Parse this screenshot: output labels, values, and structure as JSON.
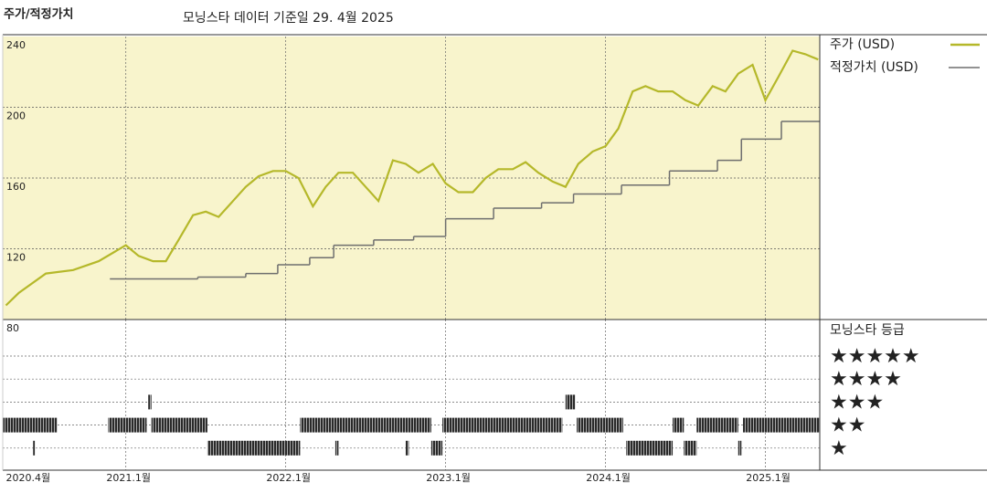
{
  "chart_data": [
    {
      "type": "line",
      "title": "주가/적정가치",
      "subtitle": "모닝스타 데이터 기준일 29. 4월 2025",
      "xlim": [
        2020.23,
        2025.34
      ],
      "xticks": [
        {
          "value": 2020.25,
          "label": "2020.4월"
        },
        {
          "value": 2021.0,
          "label": "2021.1월"
        },
        {
          "value": 2022.0,
          "label": "2022.1월"
        },
        {
          "value": 2023.0,
          "label": "2023.1월"
        },
        {
          "value": 2024.0,
          "label": "2024.1월"
        },
        {
          "value": 2025.0,
          "label": "2025.1월"
        }
      ],
      "ylim": [
        80,
        240
      ],
      "yticks": [
        80,
        120,
        160,
        200,
        240
      ],
      "grid": true,
      "background": "#f8f4cc",
      "series": [
        {
          "name": "주가 (USD)",
          "color": "#b5b82a",
          "style": "line",
          "x": [
            2020.25,
            2020.33,
            2020.5,
            2020.67,
            2020.83,
            2021.0,
            2021.08,
            2021.17,
            2021.25,
            2021.33,
            2021.42,
            2021.5,
            2021.58,
            2021.67,
            2021.75,
            2021.83,
            2021.92,
            2022.0,
            2022.08,
            2022.17,
            2022.25,
            2022.33,
            2022.42,
            2022.5,
            2022.58,
            2022.67,
            2022.75,
            2022.83,
            2022.92,
            2023.0,
            2023.08,
            2023.17,
            2023.25,
            2023.33,
            2023.42,
            2023.5,
            2023.58,
            2023.67,
            2023.75,
            2023.83,
            2023.92,
            2024.0,
            2024.08,
            2024.17,
            2024.25,
            2024.33,
            2024.42,
            2024.5,
            2024.58,
            2024.67,
            2024.75,
            2024.83,
            2024.92,
            2025.0,
            2025.08,
            2025.17,
            2025.25,
            2025.33
          ],
          "values": [
            88,
            95,
            106,
            108,
            113,
            122,
            116,
            113,
            113,
            125,
            139,
            141,
            138,
            147,
            155,
            161,
            164,
            164,
            160,
            144,
            155,
            163,
            163,
            155,
            147,
            170,
            168,
            163,
            168,
            157,
            152,
            152,
            160,
            165,
            165,
            169,
            163,
            158,
            155,
            168,
            175,
            178,
            188,
            209,
            212,
            209,
            209,
            204,
            201,
            212,
            209,
            219,
            224,
            204,
            217,
            232,
            230,
            227
          ]
        },
        {
          "name": "적정가치 (USD)",
          "color": "#6e6e6e",
          "style": "step",
          "x": [
            2020.9,
            2021.45,
            2021.75,
            2021.95,
            2022.15,
            2022.3,
            2022.55,
            2022.8,
            2023.0,
            2023.3,
            2023.6,
            2023.8,
            2024.1,
            2024.4,
            2024.7,
            2024.85,
            2025.1
          ],
          "values": [
            103,
            104,
            106,
            111,
            115,
            122,
            125,
            127,
            137,
            143,
            146,
            151,
            156,
            164,
            170,
            182,
            192
          ]
        }
      ]
    },
    {
      "type": "rating",
      "title": "모닝스타 등급",
      "levels": [
        {
          "value": 5,
          "label": "★★★★★"
        },
        {
          "value": 4,
          "label": "★★★★"
        },
        {
          "value": 3,
          "label": "★★★"
        },
        {
          "value": 2,
          "label": "★★"
        },
        {
          "value": 1,
          "label": "★"
        }
      ],
      "color": "#2a2a2a",
      "periods": [
        {
          "x": [
            2020.23,
            2020.57
          ],
          "value": 2
        },
        {
          "x": [
            2020.42,
            2020.43
          ],
          "value": 1
        },
        {
          "x": [
            2020.89,
            2021.13
          ],
          "value": 2
        },
        {
          "x": [
            2021.14,
            2021.16
          ],
          "value": 3
        },
        {
          "x": [
            2021.16,
            2021.51
          ],
          "value": 2
        },
        {
          "x": [
            2021.51,
            2022.09
          ],
          "value": 1
        },
        {
          "x": [
            2022.09,
            2022.91
          ],
          "value": 2
        },
        {
          "x": [
            2022.31,
            2022.33
          ],
          "value": 1
        },
        {
          "x": [
            2022.75,
            2022.77
          ],
          "value": 1
        },
        {
          "x": [
            2022.91,
            2022.98
          ],
          "value": 1
        },
        {
          "x": [
            2022.98,
            2023.73
          ],
          "value": 2
        },
        {
          "x": [
            2023.75,
            2023.81
          ],
          "value": 3
        },
        {
          "x": [
            2023.82,
            2024.11
          ],
          "value": 2
        },
        {
          "x": [
            2024.13,
            2024.42
          ],
          "value": 1
        },
        {
          "x": [
            2024.42,
            2024.49
          ],
          "value": 2
        },
        {
          "x": [
            2024.49,
            2024.57
          ],
          "value": 1
        },
        {
          "x": [
            2024.57,
            2024.83
          ],
          "value": 2
        },
        {
          "x": [
            2024.83,
            2024.85
          ],
          "value": 1
        },
        {
          "x": [
            2024.86,
            2025.34
          ],
          "value": 2
        }
      ]
    }
  ]
}
